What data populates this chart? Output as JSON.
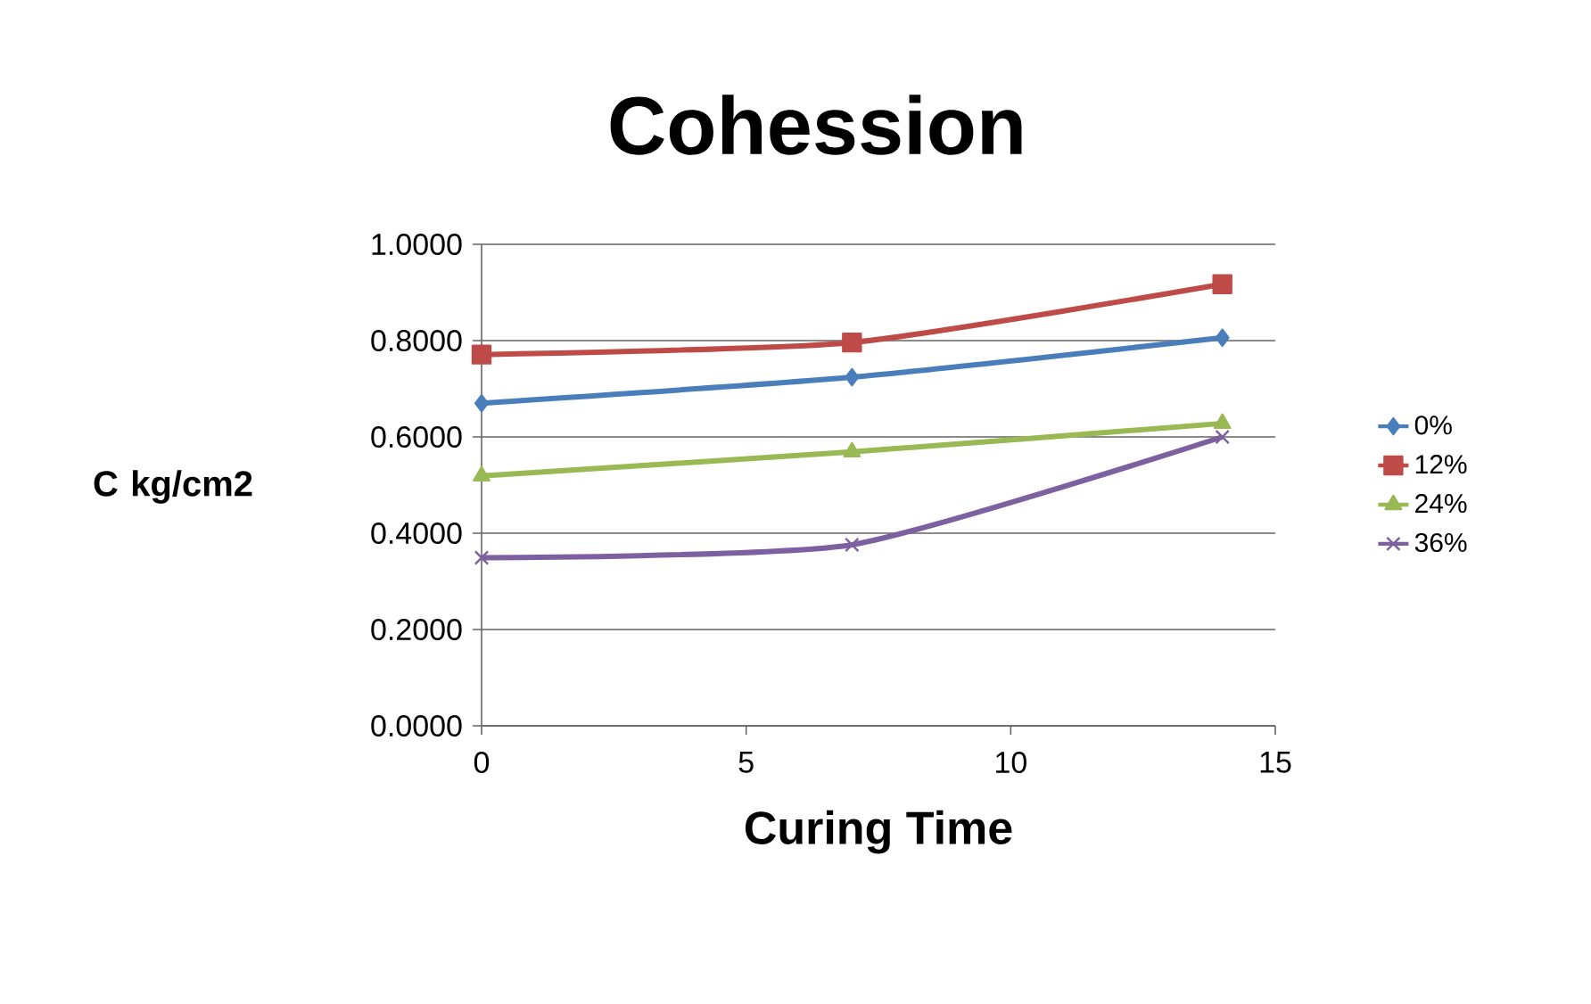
{
  "chart_data": {
    "type": "line",
    "title": "Cohession",
    "xlabel": "Curing Time",
    "ylabel": "C kg/cm2",
    "x": [
      0,
      7,
      14
    ],
    "series": [
      {
        "name": "0%",
        "color": "#4a7ebb",
        "marker": "diamond",
        "values": [
          0.67,
          0.724,
          0.806
        ]
      },
      {
        "name": "12%",
        "color": "#be4b48",
        "marker": "square",
        "values": [
          0.771,
          0.796,
          0.917
        ]
      },
      {
        "name": "24%",
        "color": "#98b954",
        "marker": "triangle",
        "values": [
          0.519,
          0.569,
          0.628
        ]
      },
      {
        "name": "36%",
        "color": "#7d60a0",
        "marker": "cross",
        "values": [
          0.349,
          0.376,
          0.6
        ]
      }
    ],
    "xlim": [
      0,
      15
    ],
    "xticks": [
      0,
      5,
      10,
      15
    ],
    "ylim": [
      0,
      1
    ],
    "yticks": [
      {
        "value": 0,
        "label": "0.0000"
      },
      {
        "value": 0.2,
        "label": "0.2000"
      },
      {
        "value": 0.4,
        "label": "0.4000"
      },
      {
        "value": 0.6,
        "label": "0.6000"
      },
      {
        "value": 0.8,
        "label": "0.8000"
      },
      {
        "value": 1,
        "label": "1.0000"
      }
    ],
    "grid": "y",
    "legend": "right",
    "line_style": "solid"
  }
}
